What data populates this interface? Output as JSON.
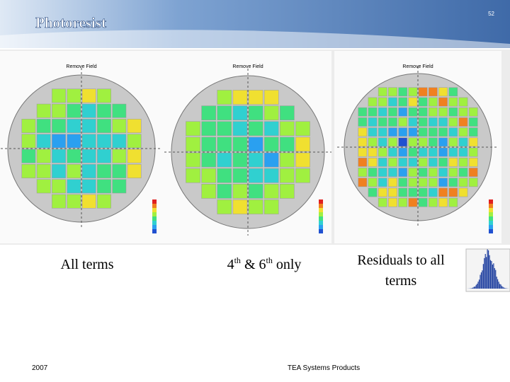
{
  "header": {
    "title": "Photoresist",
    "page_number": "52"
  },
  "panels": [
    {
      "heading": "Remove Field",
      "caption": "All terms"
    },
    {
      "heading": "Remove Field",
      "caption_parts": [
        "4",
        "th",
        "& 6",
        "th",
        "only"
      ]
    },
    {
      "heading": "Remove Field",
      "caption_lines": [
        "Residuals to all",
        "terms"
      ]
    }
  ],
  "footer": {
    "year": "2007",
    "company": "TEA Systems Products"
  }
}
